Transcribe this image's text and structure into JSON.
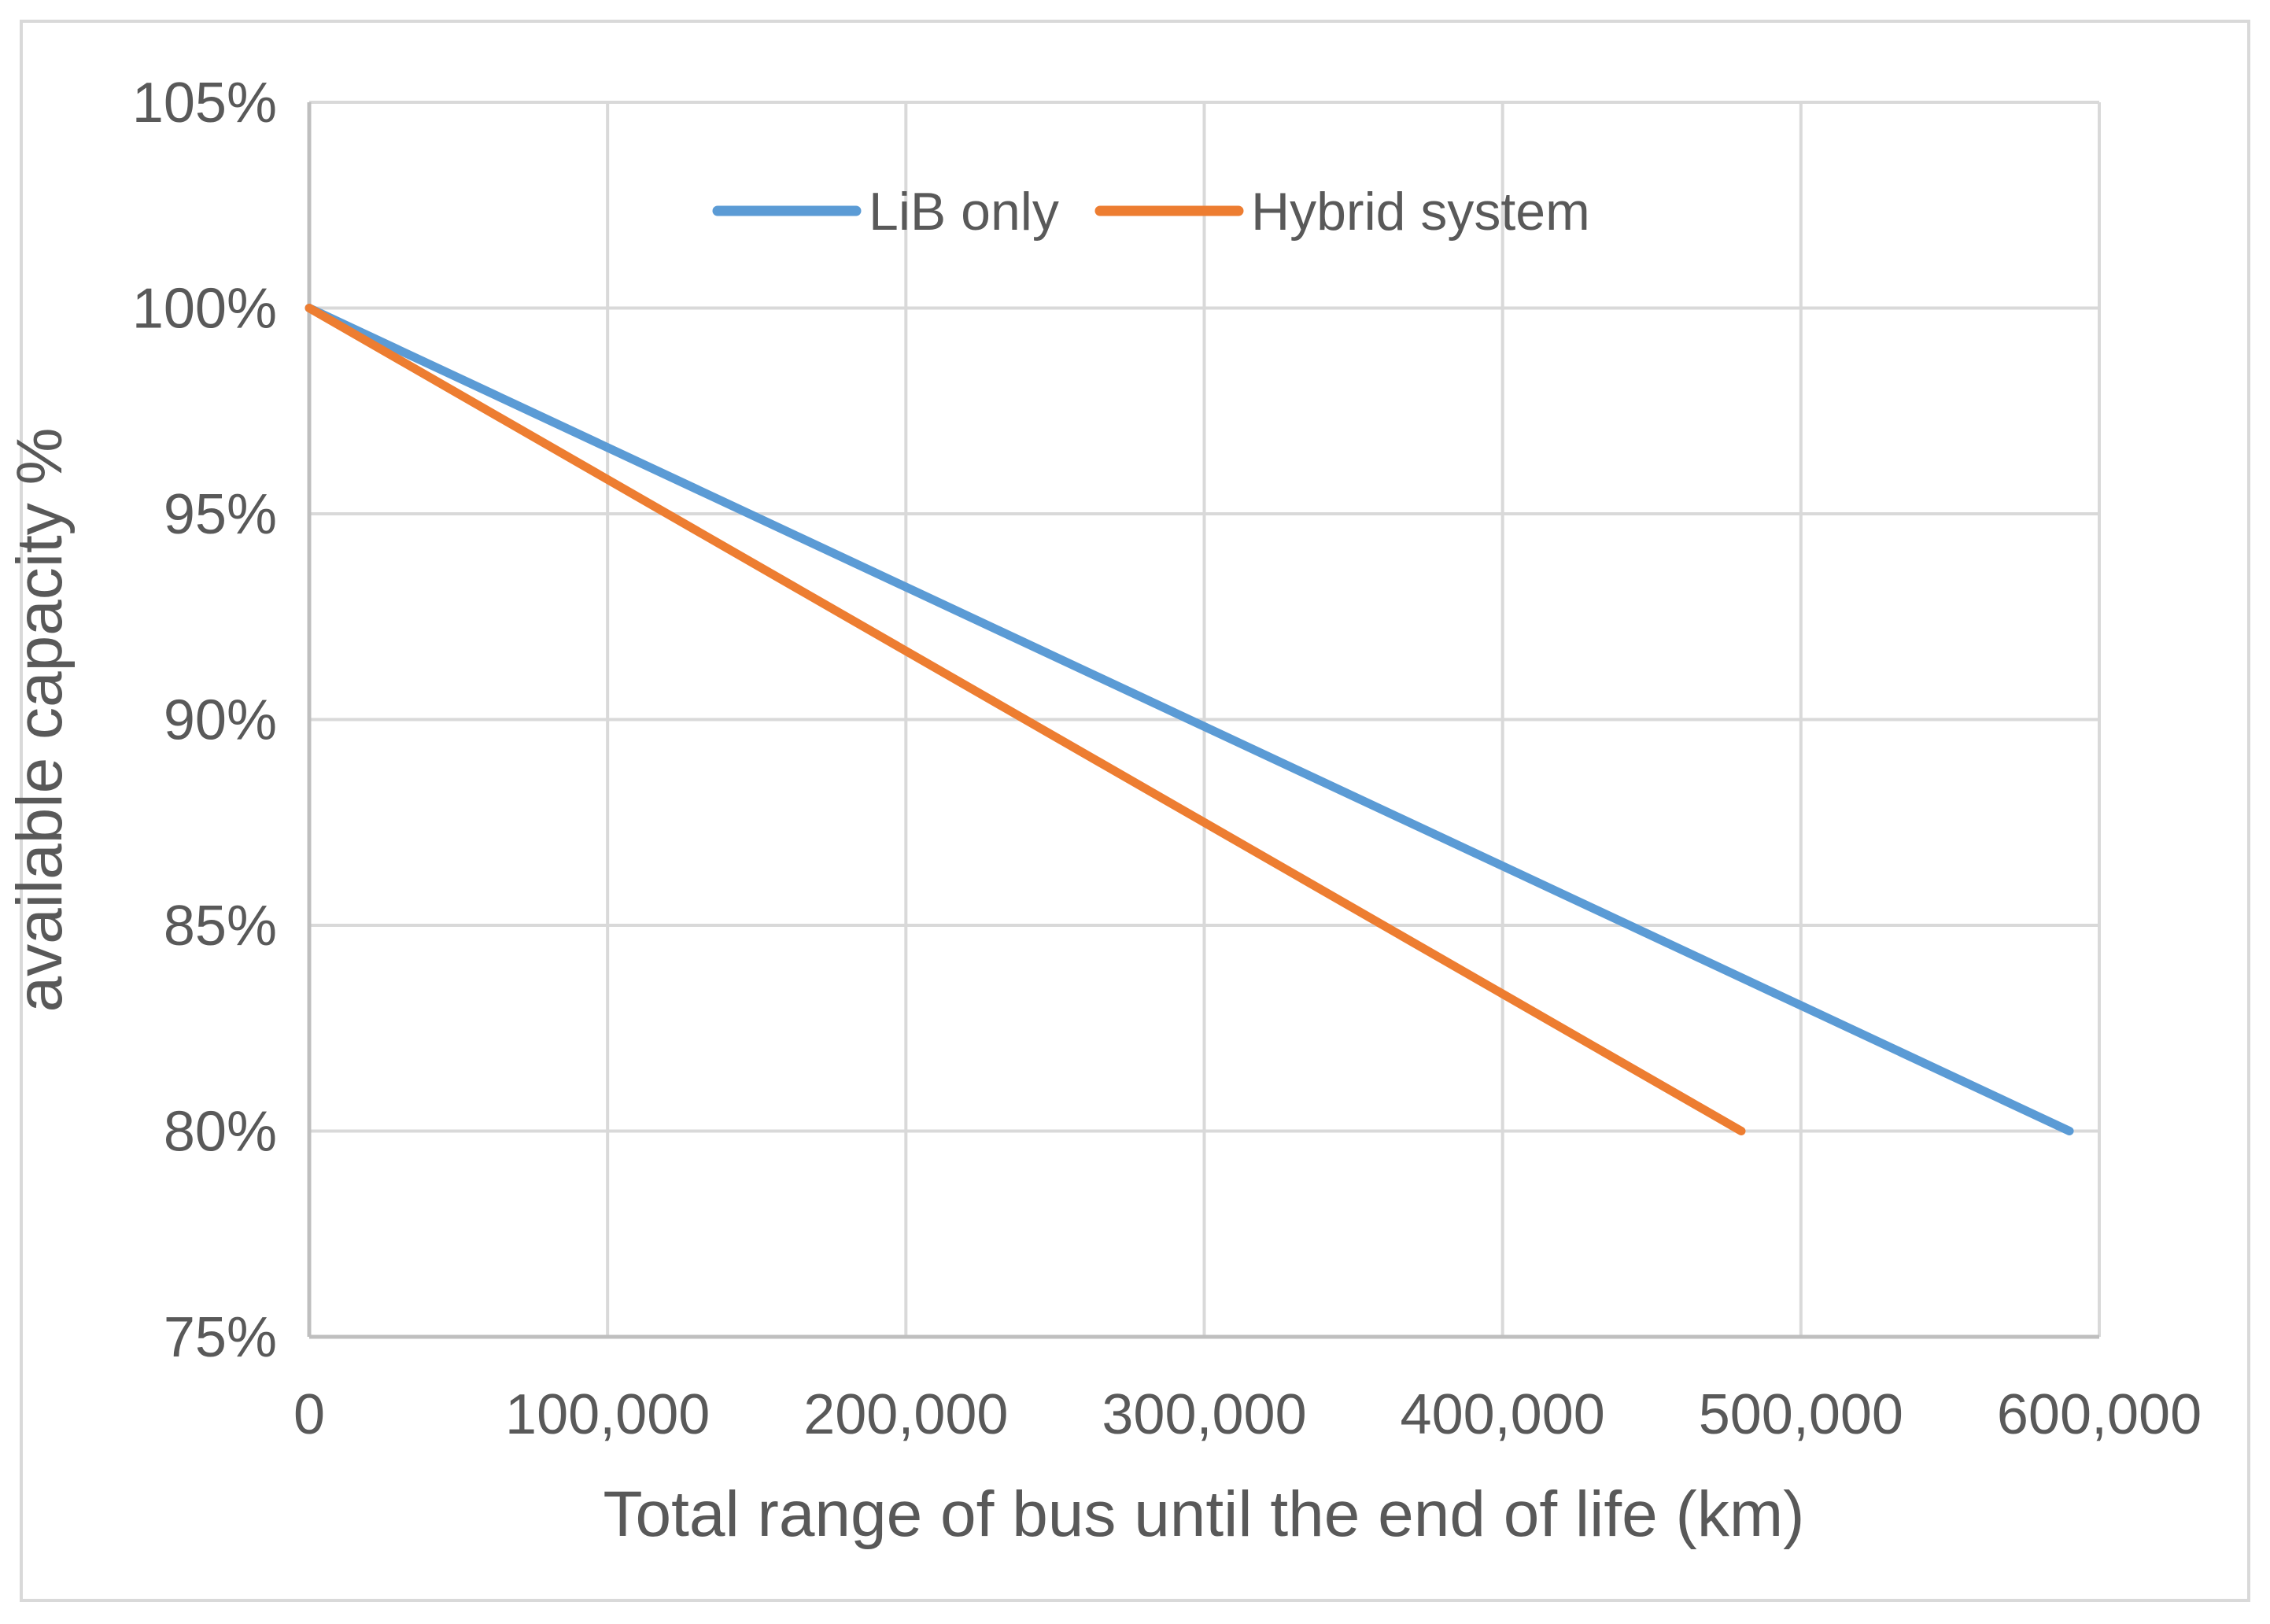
{
  "chart_data": {
    "type": "line",
    "title": "",
    "xlabel": "Total range of bus until the end of life (km)",
    "ylabel": "available capacity %",
    "xlim": [
      0,
      600000
    ],
    "ylim_percent": [
      75,
      105
    ],
    "x_ticks": [
      0,
      100000,
      200000,
      300000,
      400000,
      500000,
      600000
    ],
    "x_tick_labels": [
      "0",
      "100,000",
      "200,000",
      "300,000",
      "400,000",
      "500,000",
      "600,000"
    ],
    "y_ticks_percent": [
      105,
      100,
      95,
      90,
      85,
      80,
      75
    ],
    "y_tick_labels": [
      "105%",
      "100%",
      "95%",
      "90%",
      "85%",
      "80%",
      "75%"
    ],
    "grid": true,
    "legend": {
      "position": "top-center-inside",
      "entries": [
        "LiB only",
        "Hybrid system"
      ]
    },
    "series": [
      {
        "name": "LiB only",
        "color": "#5B9BD5",
        "points": [
          {
            "x": 0,
            "y_percent": 100
          },
          {
            "x": 590000,
            "y_percent": 80
          }
        ]
      },
      {
        "name": "Hybrid system",
        "color": "#ED7D31",
        "points": [
          {
            "x": 0,
            "y_percent": 100
          },
          {
            "x": 480000,
            "y_percent": 80
          }
        ]
      }
    ],
    "colors": {
      "gridline": "#D9D9D9",
      "axis_line": "#BFBFBF",
      "text": "#595959",
      "frame_border": "#D9D9D9",
      "background": "#FFFFFF"
    }
  }
}
